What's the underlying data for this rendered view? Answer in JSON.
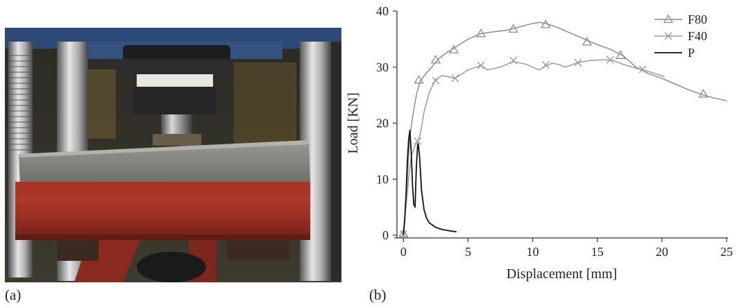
{
  "panel_a": {
    "label": "(a)"
  },
  "panel_b": {
    "label": "(b)"
  },
  "chart_data": {
    "type": "line",
    "title": "",
    "xlabel": "Displacement [mm]",
    "ylabel": "Load [KN]",
    "xlim": [
      -0.5,
      25
    ],
    "ylim": [
      0,
      40
    ],
    "x_ticks": [
      0,
      5,
      10,
      15,
      20,
      25
    ],
    "y_ticks": [
      0,
      10,
      20,
      30,
      40
    ],
    "grid": false,
    "legend_position": "top-right",
    "series": [
      {
        "name": "F80",
        "marker": "triangle",
        "color": "#8c8c8c",
        "points": [
          [
            0,
            0
          ],
          [
            0.1,
            2
          ],
          [
            0.2,
            6
          ],
          [
            0.3,
            10
          ],
          [
            0.4,
            14
          ],
          [
            0.5,
            17.5
          ],
          [
            0.7,
            21
          ],
          [
            1.0,
            25
          ],
          [
            1.3,
            27.5
          ],
          [
            1.8,
            29
          ],
          [
            2.2,
            30
          ],
          [
            2.6,
            31.2
          ],
          [
            3,
            32
          ],
          [
            3.5,
            32.8
          ],
          [
            4,
            33.5
          ],
          [
            5,
            35
          ],
          [
            6,
            36
          ],
          [
            7,
            36.3
          ],
          [
            8,
            36.6
          ],
          [
            9,
            37.2
          ],
          [
            10,
            37.8
          ],
          [
            10.5,
            38
          ],
          [
            11,
            37.8
          ],
          [
            11.5,
            37.4
          ],
          [
            12,
            37
          ],
          [
            13,
            36
          ],
          [
            14,
            35
          ],
          [
            15,
            34
          ],
          [
            16,
            33.2
          ],
          [
            17,
            32
          ],
          [
            17.5,
            31
          ],
          [
            18,
            30
          ],
          [
            19,
            28.8
          ],
          [
            20,
            28
          ],
          [
            21,
            27
          ],
          [
            22,
            26
          ],
          [
            23.2,
            25
          ],
          [
            24,
            24.5
          ],
          [
            25,
            24
          ]
        ],
        "markers_at": [
          [
            0,
            0.3
          ],
          [
            1.2,
            27.7
          ],
          [
            2.5,
            31.3
          ],
          [
            3.9,
            33.1
          ],
          [
            6,
            36
          ],
          [
            8.5,
            36.8
          ],
          [
            11,
            37.6
          ],
          [
            14.2,
            34.5
          ],
          [
            16.8,
            32.1
          ],
          [
            23.2,
            25.2
          ]
        ]
      },
      {
        "name": "F40",
        "marker": "x",
        "color": "#9a9a9a",
        "points": [
          [
            0,
            0
          ],
          [
            0.2,
            5
          ],
          [
            0.4,
            10
          ],
          [
            0.6,
            14
          ],
          [
            0.9,
            16
          ],
          [
            1.1,
            16.5
          ],
          [
            1.3,
            18
          ],
          [
            1.6,
            22
          ],
          [
            2,
            25.5
          ],
          [
            2.5,
            27.8
          ],
          [
            3,
            28.5
          ],
          [
            4,
            28
          ],
          [
            5,
            29.5
          ],
          [
            6,
            30.3
          ],
          [
            6.5,
            29.5
          ],
          [
            7.5,
            30
          ],
          [
            8.5,
            31
          ],
          [
            9.5,
            30.5
          ],
          [
            10.5,
            29.5
          ],
          [
            11,
            30.2
          ],
          [
            11.5,
            30.7
          ],
          [
            12,
            30.5
          ],
          [
            12.5,
            30
          ],
          [
            13.5,
            30.8
          ],
          [
            14.5,
            31.2
          ],
          [
            15.5,
            31.3
          ],
          [
            16.2,
            31.2
          ],
          [
            17,
            30.5
          ],
          [
            18,
            29.8
          ],
          [
            19,
            29.2
          ],
          [
            20.2,
            28.3
          ]
        ],
        "markers_at": [
          [
            0,
            0.2
          ],
          [
            1.1,
            16.8
          ],
          [
            2.5,
            27.6
          ],
          [
            4,
            28
          ],
          [
            6,
            30.3
          ],
          [
            8.5,
            31.2
          ],
          [
            11,
            30.4
          ],
          [
            13.5,
            30.8
          ],
          [
            16,
            31.3
          ],
          [
            18.5,
            29.6
          ]
        ]
      },
      {
        "name": "P",
        "marker": "none",
        "color": "#111111",
        "points": [
          [
            0,
            0
          ],
          [
            0.1,
            3
          ],
          [
            0.2,
            7
          ],
          [
            0.3,
            13
          ],
          [
            0.4,
            17
          ],
          [
            0.5,
            18.7
          ],
          [
            0.6,
            15
          ],
          [
            0.7,
            9
          ],
          [
            0.8,
            5.5
          ],
          [
            0.9,
            5
          ],
          [
            1.0,
            12
          ],
          [
            1.1,
            16
          ],
          [
            1.15,
            16.3
          ],
          [
            1.25,
            14
          ],
          [
            1.4,
            8
          ],
          [
            1.6,
            4.5
          ],
          [
            1.8,
            3
          ],
          [
            2,
            2.2
          ],
          [
            2.5,
            1.4
          ],
          [
            3,
            1
          ],
          [
            3.5,
            0.8
          ],
          [
            4.1,
            0.6
          ]
        ]
      }
    ]
  }
}
